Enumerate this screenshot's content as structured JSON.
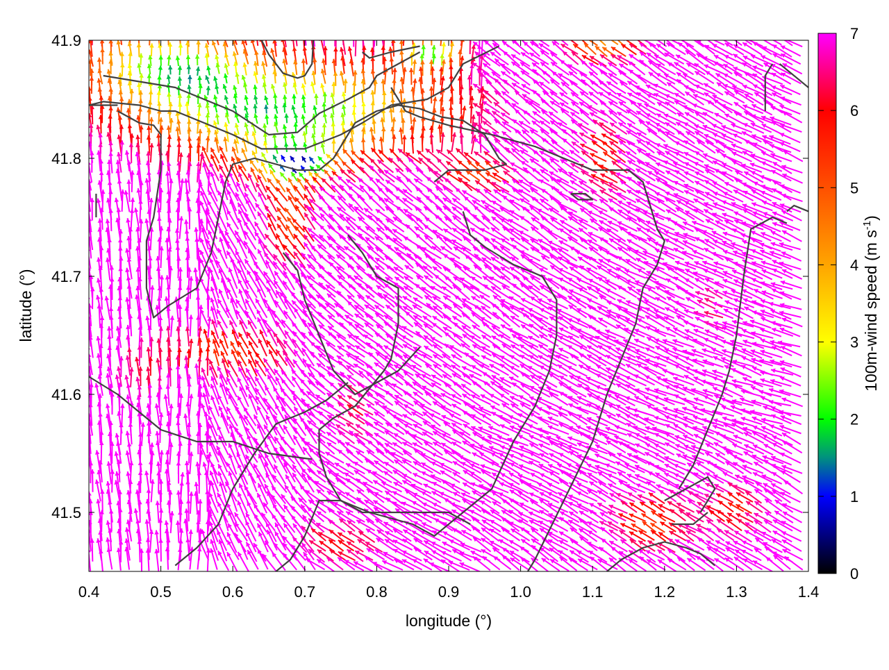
{
  "chart_data": {
    "type": "vector-field",
    "xlabel": "longitude (°)",
    "ylabel": "latitude (°)",
    "colorbar_label_main": "100m-wind speed (m s",
    "colorbar_label_sup": "-1",
    "colorbar_label_end": ")",
    "xlim": [
      0.4,
      1.4
    ],
    "ylim": [
      41.45,
      41.9
    ],
    "xticks": [
      0.4,
      0.5,
      0.6,
      0.7,
      0.8,
      0.9,
      1.0,
      1.1,
      1.2,
      1.3,
      1.4
    ],
    "xtick_labels": [
      "0.4",
      "0.5",
      "0.6",
      "0.7",
      "0.8",
      "0.9",
      "1.0",
      "1.1",
      "1.2",
      "1.3",
      "1.4"
    ],
    "yticks": [
      41.5,
      41.6,
      41.7,
      41.8,
      41.9
    ],
    "ytick_labels": [
      "41.5",
      "41.6",
      "41.7",
      "41.8",
      "41.9"
    ],
    "color_range": [
      0,
      7
    ],
    "cbticks": [
      0,
      1,
      2,
      3,
      4,
      5,
      6,
      7
    ],
    "cbtick_labels": [
      "0",
      "1",
      "2",
      "3",
      "4",
      "5",
      "6",
      "7"
    ],
    "colormap_stops": [
      [
        0.0,
        "#000000"
      ],
      [
        1.0,
        "#0000ff"
      ],
      [
        1.5,
        "#009080"
      ],
      [
        2.0,
        "#00ff00"
      ],
      [
        3.0,
        "#ffff00"
      ],
      [
        4.0,
        "#ffa500"
      ],
      [
        5.0,
        "#ff5000"
      ],
      [
        6.0,
        "#ff0000"
      ],
      [
        7.0,
        "#ff00ff"
      ]
    ],
    "contour_color": "#404040",
    "contours": [
      [
        [
          0.42,
          41.87
        ],
        [
          0.52,
          41.86
        ],
        [
          0.6,
          41.84
        ],
        [
          0.65,
          41.82
        ],
        [
          0.69,
          41.822
        ],
        [
          0.72,
          41.838
        ],
        [
          0.76,
          41.85
        ],
        [
          0.79,
          41.86
        ],
        [
          0.8,
          41.87
        ],
        [
          0.83,
          41.88
        ],
        [
          0.86,
          41.89
        ]
      ],
      [
        [
          0.4,
          41.845
        ],
        [
          0.42,
          41.848
        ],
        [
          0.47,
          41.845
        ],
        [
          0.5,
          41.84
        ],
        [
          0.52,
          41.84
        ],
        [
          0.56,
          41.83
        ],
        [
          0.6,
          41.82
        ],
        [
          0.64,
          41.808
        ],
        [
          0.7,
          41.808
        ],
        [
          0.75,
          41.82
        ],
        [
          0.78,
          41.83
        ],
        [
          0.82,
          41.845
        ],
        [
          0.87,
          41.85
        ],
        [
          0.9,
          41.86
        ],
        [
          0.92,
          41.88
        ],
        [
          0.97,
          41.895
        ]
      ],
      [
        [
          0.64,
          41.9
        ],
        [
          0.65,
          41.888
        ],
        [
          0.67,
          41.872
        ],
        [
          0.69,
          41.868
        ],
        [
          0.7,
          41.87
        ],
        [
          0.71,
          41.88
        ],
        [
          0.712,
          41.9
        ]
      ],
      [
        [
          0.78,
          41.89
        ],
        [
          0.79,
          41.885
        ],
        [
          0.82,
          41.89
        ],
        [
          0.86,
          41.895
        ]
      ],
      [
        [
          0.4,
          41.845
        ],
        [
          0.44,
          41.845
        ]
      ],
      [
        [
          0.44,
          41.84
        ],
        [
          0.47,
          41.83
        ],
        [
          0.49,
          41.828
        ],
        [
          0.5,
          41.82
        ],
        [
          0.5,
          41.79
        ],
        [
          0.49,
          41.75
        ],
        [
          0.48,
          41.73
        ],
        [
          0.48,
          41.69
        ],
        [
          0.49,
          41.665
        ],
        [
          0.51,
          41.675
        ],
        [
          0.55,
          41.69
        ],
        [
          0.57,
          41.72
        ],
        [
          0.58,
          41.75
        ],
        [
          0.59,
          41.78
        ],
        [
          0.6,
          41.795
        ],
        [
          0.63,
          41.8
        ],
        [
          0.66,
          41.795
        ],
        [
          0.69,
          41.79
        ],
        [
          0.72,
          41.79
        ],
        [
          0.74,
          41.8
        ],
        [
          0.77,
          41.83
        ],
        [
          0.8,
          41.84
        ],
        [
          0.83,
          41.845
        ],
        [
          0.86,
          41.842
        ],
        [
          0.89,
          41.835
        ],
        [
          0.92,
          41.832
        ],
        [
          0.95,
          41.82
        ],
        [
          0.97,
          41.8
        ],
        [
          0.98,
          41.795
        ],
        [
          0.95,
          41.79
        ],
        [
          0.9,
          41.79
        ],
        [
          0.88,
          41.78
        ]
      ],
      [
        [
          0.82,
          41.86
        ],
        [
          0.84,
          41.84
        ],
        [
          0.86,
          41.835
        ],
        [
          0.9,
          41.828
        ],
        [
          0.96,
          41.82
        ],
        [
          1.02,
          41.81
        ],
        [
          1.06,
          41.8
        ],
        [
          1.1,
          41.79
        ],
        [
          1.12,
          41.79
        ],
        [
          1.15,
          41.79
        ],
        [
          1.17,
          41.78
        ],
        [
          1.18,
          41.76
        ],
        [
          1.19,
          41.74
        ],
        [
          1.2,
          41.73
        ],
        [
          1.19,
          41.71
        ],
        [
          1.17,
          41.69
        ],
        [
          1.16,
          41.66
        ],
        [
          1.14,
          41.63
        ],
        [
          1.12,
          41.6
        ],
        [
          1.1,
          41.56
        ],
        [
          1.06,
          41.51
        ],
        [
          1.04,
          41.485
        ],
        [
          1.02,
          41.46
        ],
        [
          1.01,
          41.45
        ]
      ],
      [
        [
          0.92,
          41.755
        ],
        [
          0.93,
          41.735
        ],
        [
          0.95,
          41.725
        ],
        [
          0.99,
          41.71
        ],
        [
          1.03,
          41.7
        ],
        [
          1.05,
          41.68
        ],
        [
          1.05,
          41.65
        ],
        [
          1.04,
          41.62
        ],
        [
          1.02,
          41.59
        ],
        [
          0.99,
          41.56
        ],
        [
          0.96,
          41.52
        ],
        [
          0.92,
          41.5
        ],
        [
          0.88,
          41.48
        ],
        [
          0.85,
          41.49
        ],
        [
          0.82,
          41.495
        ],
        [
          0.79,
          41.5
        ],
        [
          0.75,
          41.51
        ],
        [
          0.72,
          41.51
        ],
        [
          0.7,
          41.48
        ],
        [
          0.68,
          41.46
        ],
        [
          0.66,
          41.45
        ]
      ],
      [
        [
          1.07,
          41.77
        ],
        [
          1.08,
          41.765
        ],
        [
          1.1,
          41.765
        ],
        [
          1.09,
          41.77
        ],
        [
          1.07,
          41.77
        ]
      ],
      [
        [
          0.76,
          41.735
        ],
        [
          0.78,
          41.72
        ],
        [
          0.8,
          41.7
        ],
        [
          0.83,
          41.69
        ],
        [
          0.83,
          41.66
        ],
        [
          0.82,
          41.63
        ],
        [
          0.81,
          41.62
        ],
        [
          0.79,
          41.605
        ],
        [
          0.77,
          41.59
        ],
        [
          0.74,
          41.58
        ],
        [
          0.72,
          41.57
        ],
        [
          0.72,
          41.55
        ],
        [
          0.73,
          41.53
        ],
        [
          0.75,
          41.51
        ],
        [
          0.78,
          41.5
        ],
        [
          0.84,
          41.5
        ],
        [
          0.9,
          41.5
        ],
        [
          0.93,
          41.49
        ]
      ],
      [
        [
          0.4,
          41.615
        ],
        [
          0.44,
          41.6
        ],
        [
          0.5,
          41.57
        ],
        [
          0.55,
          41.56
        ],
        [
          0.6,
          41.56
        ],
        [
          0.65,
          41.55
        ],
        [
          0.71,
          41.545
        ]
      ],
      [
        [
          0.52,
          41.455
        ],
        [
          0.55,
          41.47
        ],
        [
          0.58,
          41.49
        ],
        [
          0.6,
          41.52
        ],
        [
          0.63,
          41.55
        ],
        [
          0.66,
          41.575
        ],
        [
          0.7,
          41.585
        ],
        [
          0.73,
          41.595
        ],
        [
          0.76,
          41.61
        ]
      ],
      [
        [
          0.67,
          41.72
        ],
        [
          0.69,
          41.705
        ],
        [
          0.7,
          41.68
        ],
        [
          0.72,
          41.65
        ],
        [
          0.74,
          41.62
        ],
        [
          0.77,
          41.6
        ],
        [
          0.8,
          41.61
        ],
        [
          0.83,
          41.62
        ],
        [
          0.86,
          41.64
        ]
      ],
      [
        [
          1.25,
          41.5
        ],
        [
          1.26,
          41.51
        ],
        [
          1.27,
          41.52
        ],
        [
          1.26,
          41.53
        ],
        [
          1.23,
          41.52
        ],
        [
          1.2,
          41.51
        ]
      ],
      [
        [
          1.21,
          41.49
        ],
        [
          1.24,
          41.49
        ],
        [
          1.26,
          41.5
        ]
      ],
      [
        [
          1.12,
          41.45
        ],
        [
          1.14,
          41.46
        ],
        [
          1.17,
          41.47
        ],
        [
          1.2,
          41.475
        ],
        [
          1.23,
          41.47
        ],
        [
          1.25,
          41.465
        ],
        [
          1.27,
          41.455
        ]
      ],
      [
        [
          1.36,
          41.88
        ],
        [
          1.38,
          41.87
        ],
        [
          1.4,
          41.86
        ]
      ],
      [
        [
          1.34,
          41.84
        ],
        [
          1.34,
          41.87
        ],
        [
          1.35,
          41.88
        ]
      ],
      [
        [
          1.37,
          41.745
        ],
        [
          1.35,
          41.75
        ],
        [
          1.32,
          41.74
        ],
        [
          1.31,
          41.7
        ],
        [
          1.3,
          41.65
        ],
        [
          1.29,
          41.62
        ],
        [
          1.28,
          41.6
        ],
        [
          1.26,
          41.57
        ],
        [
          1.24,
          41.54
        ],
        [
          1.22,
          41.52
        ]
      ],
      [
        [
          1.37,
          41.755
        ],
        [
          1.38,
          41.76
        ],
        [
          1.4,
          41.755
        ]
      ],
      [
        [
          0.41,
          41.75
        ],
        [
          0.41,
          41.77
        ]
      ]
    ]
  }
}
